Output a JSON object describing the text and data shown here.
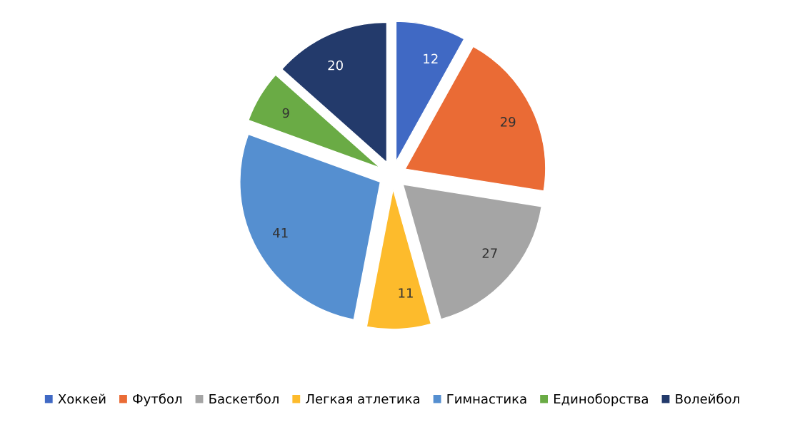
{
  "chart_data": {
    "type": "pie",
    "categories": [
      "Хоккей",
      "Футбол",
      "Баскетбол",
      "Легкая атлетика",
      "Гимнастика",
      "Единоборства",
      "Волейбол"
    ],
    "values": [
      12,
      29,
      27,
      11,
      41,
      9,
      20
    ],
    "colors": [
      "#4069c4",
      "#ea6b35",
      "#a5a5a5",
      "#fdbb2c",
      "#558fd0",
      "#6aab45",
      "#233a6b"
    ],
    "data_labels": true,
    "legend": "bottom"
  }
}
